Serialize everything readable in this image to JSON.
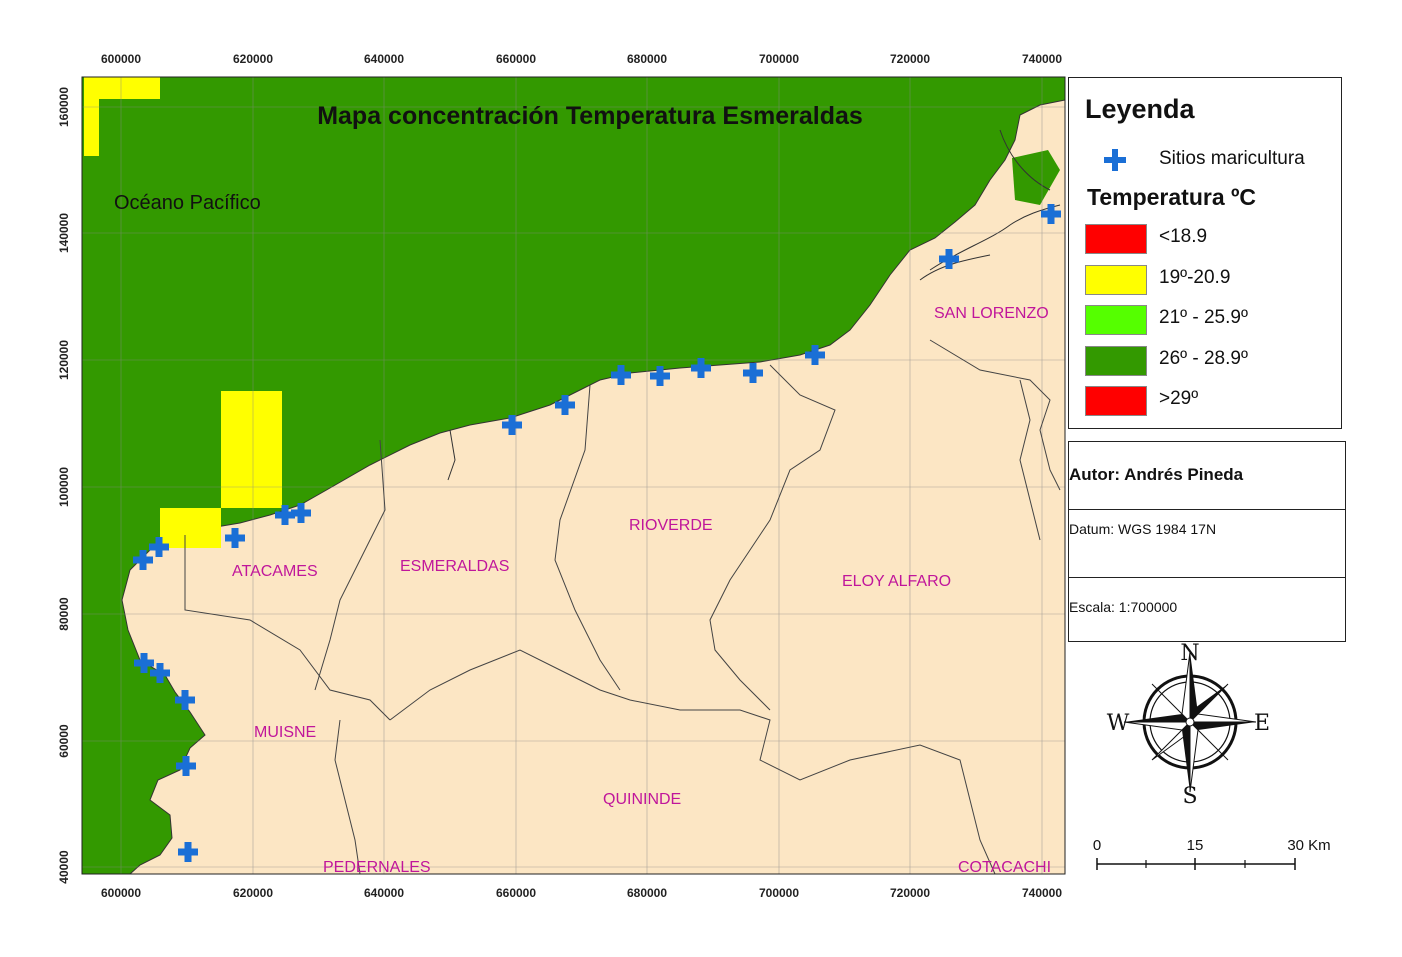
{
  "title": "Mapa concentración Temperatura Esmeraldas",
  "ocean_label": "Océano Pacífico",
  "x_ticks": [
    "600000",
    "620000",
    "640000",
    "660000",
    "680000",
    "700000",
    "720000",
    "740000"
  ],
  "y_ticks": [
    "160000",
    "140000",
    "120000",
    "100000",
    "80000",
    "60000",
    "40000"
  ],
  "regions": [
    "SAN LORENZO",
    "RIOVERDE",
    "ATACAMES",
    "ESMERALDAS",
    "ELOY ALFARO",
    "MUISNE",
    "QUININDE",
    "PEDERNALES",
    "COTACACHI"
  ],
  "legend": {
    "title": "Leyenda",
    "sites_label": "Sitios maricultura",
    "temp_title": "Temperatura ºC",
    "classes": [
      {
        "label": "<18.9",
        "color": "#ff0000"
      },
      {
        "label": "19º-20.9",
        "color": "#ffff00"
      },
      {
        "label": "21º - 25.9º",
        "color": "#55ff00"
      },
      {
        "label": "26º - 28.9º",
        "color": "#339900"
      },
      {
        "label": ">29º",
        "color": "#ff0000"
      }
    ]
  },
  "info": {
    "author": "Autor: Andrés Pineda",
    "datum": "Datum: WGS 1984 17N",
    "scale": "Escala: 1:700000"
  },
  "compass": {
    "n": "N",
    "s": "S",
    "e": "E",
    "w": "W"
  },
  "scalebar": {
    "labels": [
      "0",
      "15",
      "30 Km"
    ]
  },
  "colors": {
    "ocean": "#339900",
    "land": "#fce6c4",
    "warm_patch": "#ffff00",
    "site_marker": "#1a6fd6",
    "region_label": "#c0169b"
  }
}
